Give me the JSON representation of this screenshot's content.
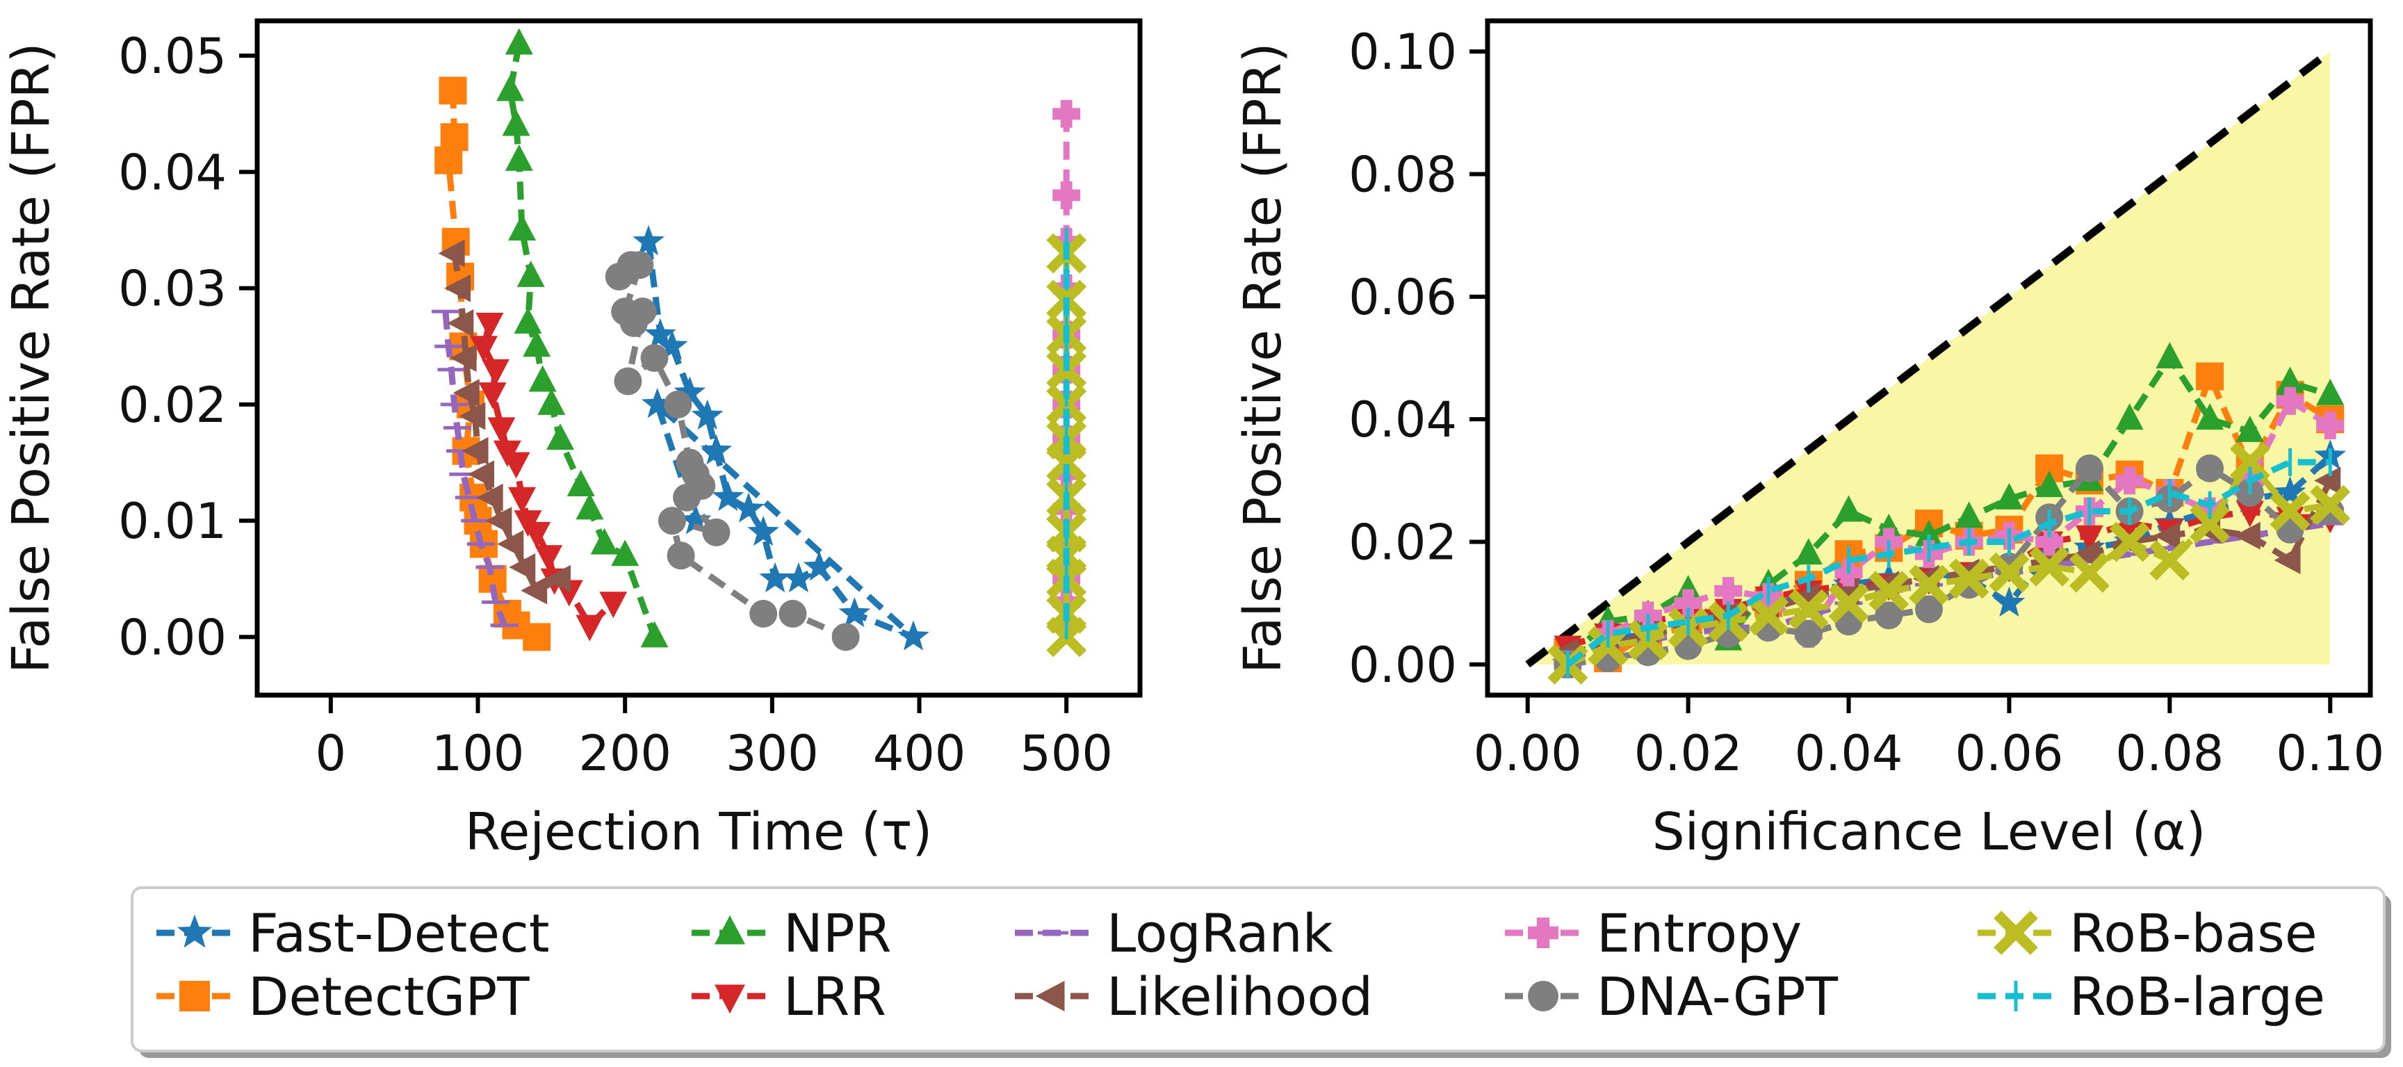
{
  "chart_data": [
    {
      "type": "line",
      "id": "left",
      "xlabel": "Rejection Time (τ)",
      "ylabel": "False Positive Rate (FPR)",
      "xlim": [
        -50,
        550
      ],
      "ylim": [
        -0.005,
        0.053
      ],
      "xticks": [
        0,
        100,
        200,
        300,
        400,
        500
      ],
      "yticks": [
        0.0,
        0.01,
        0.02,
        0.03,
        0.04,
        0.05
      ],
      "xtick_labels": [
        "0",
        "100",
        "200",
        "300",
        "400",
        "500"
      ],
      "ytick_labels": [
        "0.00",
        "0.01",
        "0.02",
        "0.03",
        "0.04",
        "0.05"
      ],
      "series": [
        {
          "name": "Fast-Detect",
          "x": [
            216,
            224,
            232,
            244,
            256,
            262,
            270,
            284,
            294,
            302,
            318,
            332,
            356,
            396,
            222,
            248
          ],
          "y": [
            0.034,
            0.026,
            0.025,
            0.021,
            0.019,
            0.016,
            0.012,
            0.011,
            0.009,
            0.005,
            0.005,
            0.006,
            0.002,
            0.0,
            0.02,
            0.01
          ]
        },
        {
          "name": "DetectGPT",
          "x": [
            83,
            84,
            80,
            85,
            88,
            90,
            95,
            92,
            97,
            100,
            104,
            110,
            120,
            126,
            140
          ],
          "y": [
            0.047,
            0.043,
            0.041,
            0.034,
            0.031,
            0.025,
            0.02,
            0.016,
            0.012,
            0.01,
            0.008,
            0.005,
            0.002,
            0.001,
            0.0
          ]
        },
        {
          "name": "NPR",
          "x": [
            128,
            122,
            126,
            128,
            130,
            136,
            134,
            140,
            144,
            150,
            156,
            170,
            176,
            186,
            200,
            220
          ],
          "y": [
            0.051,
            0.047,
            0.044,
            0.041,
            0.035,
            0.031,
            0.027,
            0.025,
            0.022,
            0.02,
            0.017,
            0.013,
            0.011,
            0.008,
            0.007,
            0.0
          ]
        },
        {
          "name": "LRR",
          "x": [
            108,
            104,
            112,
            110,
            116,
            120,
            126,
            130,
            134,
            140,
            148,
            152,
            162,
            176,
            192
          ],
          "y": [
            0.027,
            0.025,
            0.023,
            0.021,
            0.018,
            0.016,
            0.015,
            0.012,
            0.01,
            0.009,
            0.007,
            0.005,
            0.004,
            0.001,
            0.003
          ]
        },
        {
          "name": "LogRank",
          "x": [
            78,
            80,
            82,
            84,
            86,
            88,
            90,
            94,
            98,
            102,
            108,
            112,
            118
          ],
          "y": [
            0.028,
            0.025,
            0.023,
            0.02,
            0.018,
            0.016,
            0.014,
            0.012,
            0.01,
            0.008,
            0.006,
            0.003,
            0.001
          ]
        },
        {
          "name": "Likelihood",
          "x": [
            84,
            88,
            90,
            92,
            94,
            98,
            100,
            104,
            110,
            116,
            124,
            132,
            140,
            156
          ],
          "y": [
            0.033,
            0.03,
            0.027,
            0.024,
            0.021,
            0.019,
            0.016,
            0.014,
            0.012,
            0.01,
            0.008,
            0.006,
            0.004,
            0.005
          ]
        },
        {
          "name": "Entropy",
          "x": [
            500,
            500,
            500,
            500,
            500,
            500,
            500,
            500,
            500,
            500,
            500,
            500,
            500,
            500
          ],
          "y": [
            0.045,
            0.038,
            0.034,
            0.03,
            0.026,
            0.023,
            0.02,
            0.017,
            0.014,
            0.011,
            0.008,
            0.005,
            0.003,
            0.001
          ]
        },
        {
          "name": "DNA-GPT",
          "x": [
            196,
            204,
            210,
            200,
            206,
            212,
            202,
            220,
            236,
            244,
            248,
            252,
            242,
            262,
            232,
            238,
            294,
            314,
            350
          ],
          "y": [
            0.031,
            0.032,
            0.032,
            0.028,
            0.027,
            0.028,
            0.022,
            0.024,
            0.02,
            0.015,
            0.014,
            0.013,
            0.012,
            0.009,
            0.01,
            0.007,
            0.002,
            0.002,
            0.0
          ]
        },
        {
          "name": "RoB-base",
          "x": [
            500,
            500,
            500,
            500,
            500,
            500,
            500,
            500,
            500,
            500,
            500,
            500,
            500
          ],
          "y": [
            0.033,
            0.029,
            0.026,
            0.023,
            0.02,
            0.017,
            0.015,
            0.012,
            0.009,
            0.007,
            0.005,
            0.002,
            0.0
          ]
        },
        {
          "name": "RoB-large",
          "x": [
            500,
            500,
            500,
            500,
            500,
            500,
            500,
            500,
            500,
            500
          ],
          "y": [
            0.034,
            0.031,
            0.028,
            0.025,
            0.021,
            0.017,
            0.013,
            0.009,
            0.005,
            0.001
          ]
        }
      ]
    },
    {
      "type": "line",
      "id": "right",
      "xlabel": "Significance Level (α)",
      "ylabel": "False Positive Rate (FPR)",
      "xlim": [
        -0.005,
        0.105
      ],
      "ylim": [
        -0.005,
        0.105
      ],
      "xticks": [
        0.0,
        0.02,
        0.04,
        0.06,
        0.08,
        0.1
      ],
      "yticks": [
        0.0,
        0.02,
        0.04,
        0.06,
        0.08,
        0.1
      ],
      "xtick_labels": [
        "0.00",
        "0.02",
        "0.04",
        "0.06",
        "0.08",
        "0.10"
      ],
      "ytick_labels": [
        "0.00",
        "0.02",
        "0.04",
        "0.06",
        "0.08",
        "0.10"
      ],
      "reference_line": {
        "x": [
          0.0,
          0.1
        ],
        "y": [
          0.0,
          0.1
        ],
        "color": "#000000",
        "style": "dashed"
      },
      "fill_region": {
        "x": [
          0.0,
          0.1,
          0.1
        ],
        "y": [
          0.0,
          0.1,
          0.0
        ],
        "color": "#f7f7a6"
      },
      "alpha_grid": [
        0.005,
        0.01,
        0.015,
        0.02,
        0.025,
        0.03,
        0.035,
        0.04,
        0.045,
        0.05,
        0.055,
        0.06,
        0.065,
        0.07,
        0.075,
        0.08,
        0.085,
        0.09,
        0.095,
        0.1
      ],
      "series": [
        {
          "name": "Fast-Detect",
          "y": [
            0.0,
            0.004,
            0.005,
            0.007,
            0.009,
            0.01,
            0.012,
            0.013,
            0.014,
            0.015,
            0.014,
            0.01,
            0.018,
            0.019,
            0.02,
            0.023,
            0.025,
            0.027,
            0.028,
            0.034
          ]
        },
        {
          "name": "DetectGPT",
          "y": [
            0.002,
            0.001,
            0.005,
            0.006,
            0.008,
            0.01,
            0.013,
            0.018,
            0.019,
            0.023,
            0.021,
            0.022,
            0.032,
            0.03,
            0.031,
            0.028,
            0.047,
            0.032,
            0.044,
            0.04
          ]
        },
        {
          "name": "NPR",
          "y": [
            0.001,
            0.007,
            0.008,
            0.012,
            0.004,
            0.013,
            0.018,
            0.025,
            0.022,
            0.021,
            0.024,
            0.027,
            0.029,
            0.03,
            0.04,
            0.05,
            0.04,
            0.038,
            0.046,
            0.044
          ]
        },
        {
          "name": "LRR",
          "y": [
            0.003,
            0.005,
            0.007,
            0.008,
            0.009,
            0.011,
            0.012,
            0.013,
            0.013,
            0.014,
            0.015,
            0.016,
            0.02,
            0.021,
            0.023,
            0.022,
            0.024,
            0.025,
            0.024,
            0.024
          ]
        },
        {
          "name": "LogRank",
          "y": [
            0.001,
            0.003,
            0.004,
            0.005,
            0.006,
            0.006,
            0.008,
            0.01,
            0.012,
            0.013,
            0.014,
            0.015,
            0.016,
            0.017,
            0.018,
            0.019,
            0.02,
            0.021,
            0.022,
            0.023
          ]
        },
        {
          "name": "Likelihood",
          "y": [
            0.002,
            0.003,
            0.005,
            0.006,
            0.008,
            0.009,
            0.011,
            0.012,
            0.013,
            0.014,
            0.015,
            0.016,
            0.017,
            0.018,
            0.02,
            0.021,
            0.022,
            0.021,
            0.017,
            0.03
          ]
        },
        {
          "name": "Entropy",
          "y": [
            0.0,
            0.005,
            0.008,
            0.01,
            0.012,
            0.011,
            0.005,
            0.015,
            0.02,
            0.018,
            0.02,
            0.021,
            0.02,
            0.025,
            0.03,
            0.028,
            0.025,
            0.03,
            0.043,
            0.039
          ]
        },
        {
          "name": "DNA-GPT",
          "y": [
            0.0,
            0.001,
            0.002,
            0.003,
            0.005,
            0.006,
            0.005,
            0.007,
            0.008,
            0.009,
            0.013,
            0.016,
            0.024,
            0.032,
            0.025,
            0.027,
            0.032,
            0.028,
            0.022,
            0.025
          ]
        },
        {
          "name": "RoB-base",
          "y": [
            0.0,
            0.003,
            0.004,
            0.006,
            0.007,
            0.008,
            0.009,
            0.01,
            0.012,
            0.013,
            0.014,
            0.015,
            0.016,
            0.015,
            0.02,
            0.017,
            0.023,
            0.033,
            0.025,
            0.026
          ]
        },
        {
          "name": "RoB-large",
          "y": [
            0.0,
            0.005,
            0.006,
            0.007,
            0.008,
            0.012,
            0.014,
            0.017,
            0.018,
            0.019,
            0.02,
            0.02,
            0.023,
            0.025,
            0.025,
            0.028,
            0.026,
            0.03,
            0.033,
            0.033
          ]
        }
      ]
    }
  ],
  "legend": {
    "position": "bottom-center",
    "entries": [
      {
        "name": "Fast-Detect",
        "color": "#1f77b4",
        "marker": "star"
      },
      {
        "name": "DetectGPT",
        "color": "#ff7f0e",
        "marker": "square"
      },
      {
        "name": "NPR",
        "color": "#2ca02c",
        "marker": "triangle-up"
      },
      {
        "name": "LRR",
        "color": "#d62728",
        "marker": "triangle-down"
      },
      {
        "name": "LogRank",
        "color": "#9467bd",
        "marker": "hline"
      },
      {
        "name": "Likelihood",
        "color": "#8c564b",
        "marker": "triangle-left"
      },
      {
        "name": "Entropy",
        "color": "#e377c2",
        "marker": "plus"
      },
      {
        "name": "DNA-GPT",
        "color": "#7f7f7f",
        "marker": "circle"
      },
      {
        "name": "RoB-base",
        "color": "#bcbd22",
        "marker": "x"
      },
      {
        "name": "RoB-large",
        "color": "#17becf",
        "marker": "vline"
      }
    ]
  }
}
